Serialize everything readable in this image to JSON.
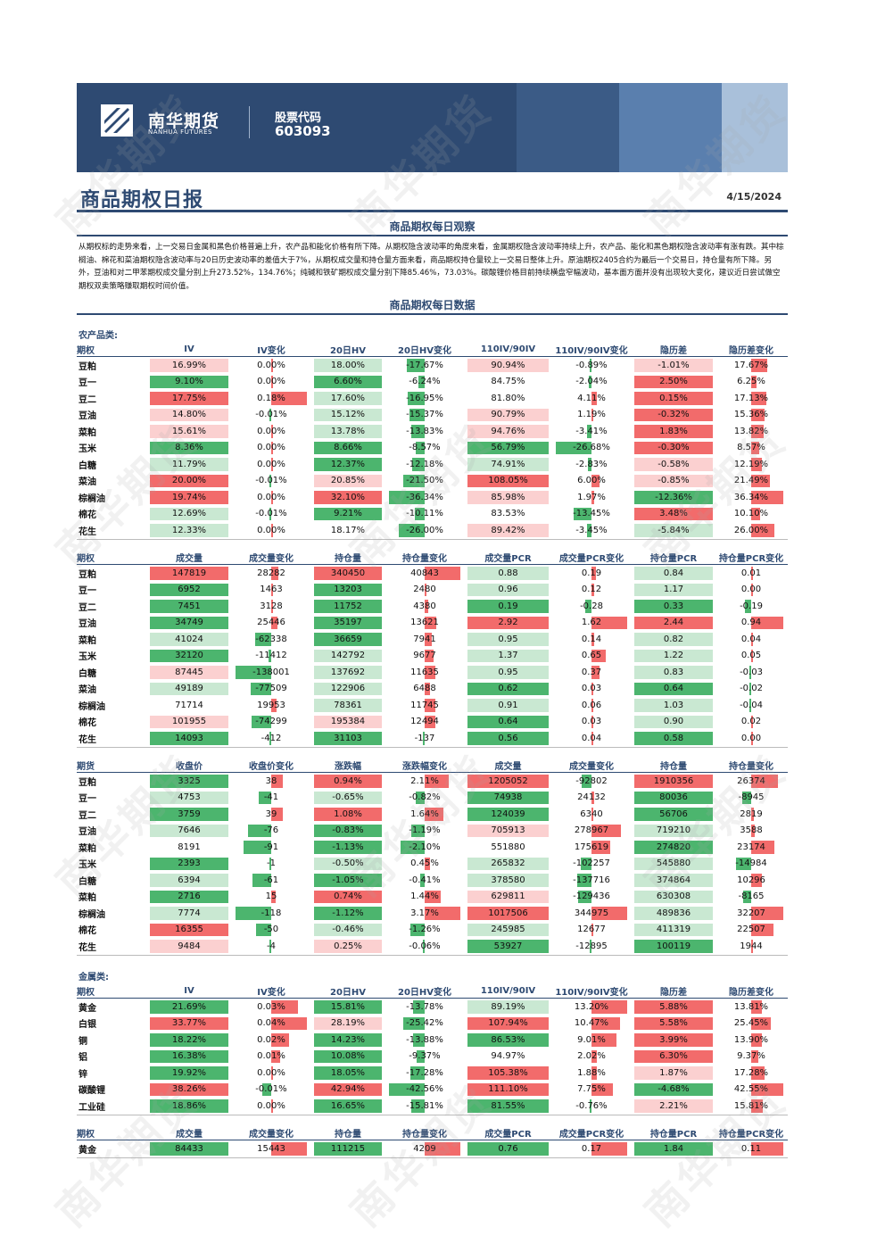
{
  "header": {
    "brand_cn": "南华期货",
    "brand_en": "NANHUA FUTURES",
    "stock_label": "股票代码",
    "stock_code": "603093"
  },
  "title": "商品期权日报",
  "date": "4/15/2024",
  "observation": {
    "title": "商品期权每日观察",
    "text": "从期权标的走势来看，上一交易日金属和黑色价格普遍上升，农产品和能化价格有所下降。从期权隐含波动率的角度来看，金属期权隐含波动率持续上升，农产品、能化和黑色期权隐含波动率有涨有跌。其中棕榈油、棉花和菜油期权隐含波动率与20日历史波动率的差值大于7%，从期权成交量和持仓量方面来看，商品期权持仓量较上一交易日整体上升。原油期权2405合约为最后一个交易日，持仓量有所下降。另外，豆油和对二甲苯期权成交量分别上升273.52%，134.76%；纯碱和铁矿期权成交量分别下降85.46%，73.03%。碳酸锂价格目前持续横盘窄幅波动，基本面方面并没有出现较大变化，建议近日尝试做空期权双卖策略赚取期权时间价值。"
  },
  "data_title": "商品期权每日数据",
  "colors": {
    "red": "#f26b6b",
    "red_light": "#fbd0d0",
    "green": "#4cb56e",
    "green_light": "#c9e8d2",
    "navy": "#2e4a72"
  },
  "sections": [
    {
      "category": "农产品类:",
      "tables": [
        {
          "headers": [
            "期权",
            "IV",
            "IV变化",
            "20日HV",
            "20日HV变化",
            "110IV/90IV",
            "110IV/90IV变化",
            "隐历差",
            "隐历差变化"
          ],
          "rows": [
            [
              "豆粕",
              "16.99%",
              "0.00%",
              "18.00%",
              "-17.67%",
              "90.94%",
              "-0.89%",
              "-1.01%",
              "17.67%"
            ],
            [
              "豆一",
              "9.10%",
              "0.00%",
              "6.60%",
              "-6.24%",
              "84.75%",
              "-2.04%",
              "2.50%",
              "6.25%"
            ],
            [
              "豆二",
              "17.75%",
              "0.18%",
              "17.60%",
              "-16.95%",
              "81.80%",
              "4.11%",
              "0.15%",
              "17.13%"
            ],
            [
              "豆油",
              "14.80%",
              "-0.01%",
              "15.12%",
              "-15.37%",
              "90.79%",
              "1.19%",
              "-0.32%",
              "15.36%"
            ],
            [
              "菜粕",
              "15.61%",
              "0.00%",
              "13.78%",
              "-13.83%",
              "94.76%",
              "-3.41%",
              "1.83%",
              "13.82%"
            ],
            [
              "玉米",
              "8.36%",
              "0.00%",
              "8.66%",
              "-8.57%",
              "56.79%",
              "-26.68%",
              "-0.30%",
              "8.57%"
            ],
            [
              "白糖",
              "11.79%",
              "0.00%",
              "12.37%",
              "-12.18%",
              "74.91%",
              "-2.83%",
              "-0.58%",
              "12.19%"
            ],
            [
              "菜油",
              "20.00%",
              "-0.01%",
              "20.85%",
              "-21.50%",
              "108.05%",
              "6.00%",
              "-0.85%",
              "21.49%"
            ],
            [
              "棕榈油",
              "19.74%",
              "0.00%",
              "32.10%",
              "-36.34%",
              "85.98%",
              "1.97%",
              "-12.36%",
              "36.34%"
            ],
            [
              "棉花",
              "12.69%",
              "-0.01%",
              "9.21%",
              "-10.11%",
              "83.53%",
              "-13.45%",
              "3.48%",
              "10.10%"
            ],
            [
              "花生",
              "12.33%",
              "0.00%",
              "18.17%",
              "-26.00%",
              "89.42%",
              "-3.45%",
              "-5.84%",
              "26.00%"
            ]
          ]
        },
        {
          "headers": [
            "期权",
            "成交量",
            "成交量变化",
            "持仓量",
            "持仓量变化",
            "成交量PCR",
            "成交量PCR变化",
            "持仓量PCR",
            "持仓量PCR变化"
          ],
          "rows": [
            [
              "豆粕",
              "147819",
              "28282",
              "340450",
              "40843",
              "0.88",
              "0.19",
              "0.84",
              "0.01"
            ],
            [
              "豆一",
              "6952",
              "1463",
              "13203",
              "2480",
              "0.96",
              "0.12",
              "1.17",
              "0.00"
            ],
            [
              "豆二",
              "7451",
              "3128",
              "11752",
              "4380",
              "0.19",
              "-0.28",
              "0.33",
              "-0.19"
            ],
            [
              "豆油",
              "34749",
              "25446",
              "35197",
              "13621",
              "2.92",
              "1.62",
              "2.44",
              "0.94"
            ],
            [
              "菜粕",
              "41024",
              "-62338",
              "36659",
              "7941",
              "0.95",
              "0.14",
              "0.82",
              "0.04"
            ],
            [
              "玉米",
              "32120",
              "-11412",
              "142792",
              "9677",
              "1.37",
              "0.65",
              "1.22",
              "0.05"
            ],
            [
              "白糖",
              "87445",
              "-138001",
              "137692",
              "11635",
              "0.95",
              "0.37",
              "0.83",
              "-0.03"
            ],
            [
              "菜油",
              "49189",
              "-77509",
              "122906",
              "6488",
              "0.62",
              "0.03",
              "0.64",
              "-0.02"
            ],
            [
              "棕榈油",
              "71714",
              "19953",
              "78361",
              "11745",
              "0.91",
              "0.06",
              "1.03",
              "-0.04"
            ],
            [
              "棉花",
              "101955",
              "-74299",
              "195384",
              "12494",
              "0.64",
              "0.03",
              "0.90",
              "0.02"
            ],
            [
              "花生",
              "14093",
              "-412",
              "31103",
              "-137",
              "0.56",
              "0.04",
              "0.58",
              "0.00"
            ]
          ]
        },
        {
          "headers": [
            "期货",
            "收盘价",
            "收盘价变化",
            "涨跌幅",
            "涨跌幅变化",
            "成交量",
            "成交量变化",
            "持仓量",
            "持仓量变化"
          ],
          "rows": [
            [
              "豆粕",
              "3325",
              "38",
              "0.94%",
              "2.11%",
              "1205052",
              "-92802",
              "1910356",
              "26374"
            ],
            [
              "豆一",
              "4753",
              "-41",
              "-0.65%",
              "-0.82%",
              "74938",
              "24132",
              "80036",
              "-8945"
            ],
            [
              "豆二",
              "3759",
              "39",
              "1.08%",
              "1.64%",
              "124039",
              "6340",
              "56706",
              "2819"
            ],
            [
              "豆油",
              "7646",
              "-76",
              "-0.83%",
              "-1.19%",
              "705913",
              "278967",
              "719210",
              "3588"
            ],
            [
              "菜粕",
              "8191",
              "-91",
              "-1.13%",
              "-2.10%",
              "551880",
              "175619",
              "274820",
              "23174"
            ],
            [
              "玉米",
              "2393",
              "-1",
              "-0.50%",
              "0.45%",
              "265832",
              "-102257",
              "545880",
              "-14984"
            ],
            [
              "白糖",
              "6394",
              "-61",
              "-1.05%",
              "-0.41%",
              "378580",
              "-137716",
              "374864",
              "10296"
            ],
            [
              "菜粕",
              "2716",
              "15",
              "0.74%",
              "1.44%",
              "629811",
              "-129436",
              "630308",
              "-8165"
            ],
            [
              "棕榈油",
              "7774",
              "-118",
              "-1.12%",
              "3.17%",
              "1017506",
              "344975",
              "489836",
              "32207"
            ],
            [
              "棉花",
              "16355",
              "-50",
              "-0.46%",
              "-1.26%",
              "245985",
              "12677",
              "411319",
              "22507"
            ],
            [
              "花生",
              "9484",
              "-4",
              "0.25%",
              "-0.06%",
              "53927",
              "-12895",
              "100119",
              "1944"
            ]
          ]
        }
      ]
    },
    {
      "category": "金属类:",
      "tables": [
        {
          "headers": [
            "期权",
            "IV",
            "IV变化",
            "20日HV",
            "20日HV变化",
            "110IV/90IV",
            "110IV/90IV变化",
            "隐历差",
            "隐历差变化"
          ],
          "rows": [
            [
              "黄金",
              "21.69%",
              "0.03%",
              "15.81%",
              "-13.78%",
              "89.19%",
              "13.20%",
              "5.88%",
              "13.81%"
            ],
            [
              "白银",
              "33.77%",
              "0.04%",
              "28.19%",
              "-25.42%",
              "107.94%",
              "10.47%",
              "5.58%",
              "25.45%"
            ],
            [
              "铜",
              "18.22%",
              "0.02%",
              "14.23%",
              "-13.88%",
              "86.53%",
              "9.01%",
              "3.99%",
              "13.90%"
            ],
            [
              "铝",
              "16.38%",
              "0.01%",
              "10.08%",
              "-9.37%",
              "94.97%",
              "2.02%",
              "6.30%",
              "9.37%"
            ],
            [
              "锌",
              "19.92%",
              "0.00%",
              "18.05%",
              "-17.28%",
              "105.38%",
              "1.88%",
              "1.87%",
              "17.28%"
            ],
            [
              "碳酸锂",
              "38.26%",
              "-0.01%",
              "42.94%",
              "-42.56%",
              "111.10%",
              "7.75%",
              "-4.68%",
              "42.55%"
            ],
            [
              "工业硅",
              "18.86%",
              "0.00%",
              "16.65%",
              "-15.81%",
              "81.55%",
              "-0.76%",
              "2.21%",
              "15.81%"
            ]
          ]
        },
        {
          "headers": [
            "期权",
            "成交量",
            "成交量变化",
            "持仓量",
            "持仓量变化",
            "成交量PCR",
            "成交量PCR变化",
            "持仓量PCR",
            "持仓量PCR变化"
          ],
          "rows": [
            [
              "黄金",
              "84433",
              "15443",
              "111215",
              "4209",
              "0.76",
              "0.17",
              "1.84",
              "0.11"
            ]
          ]
        }
      ]
    }
  ]
}
